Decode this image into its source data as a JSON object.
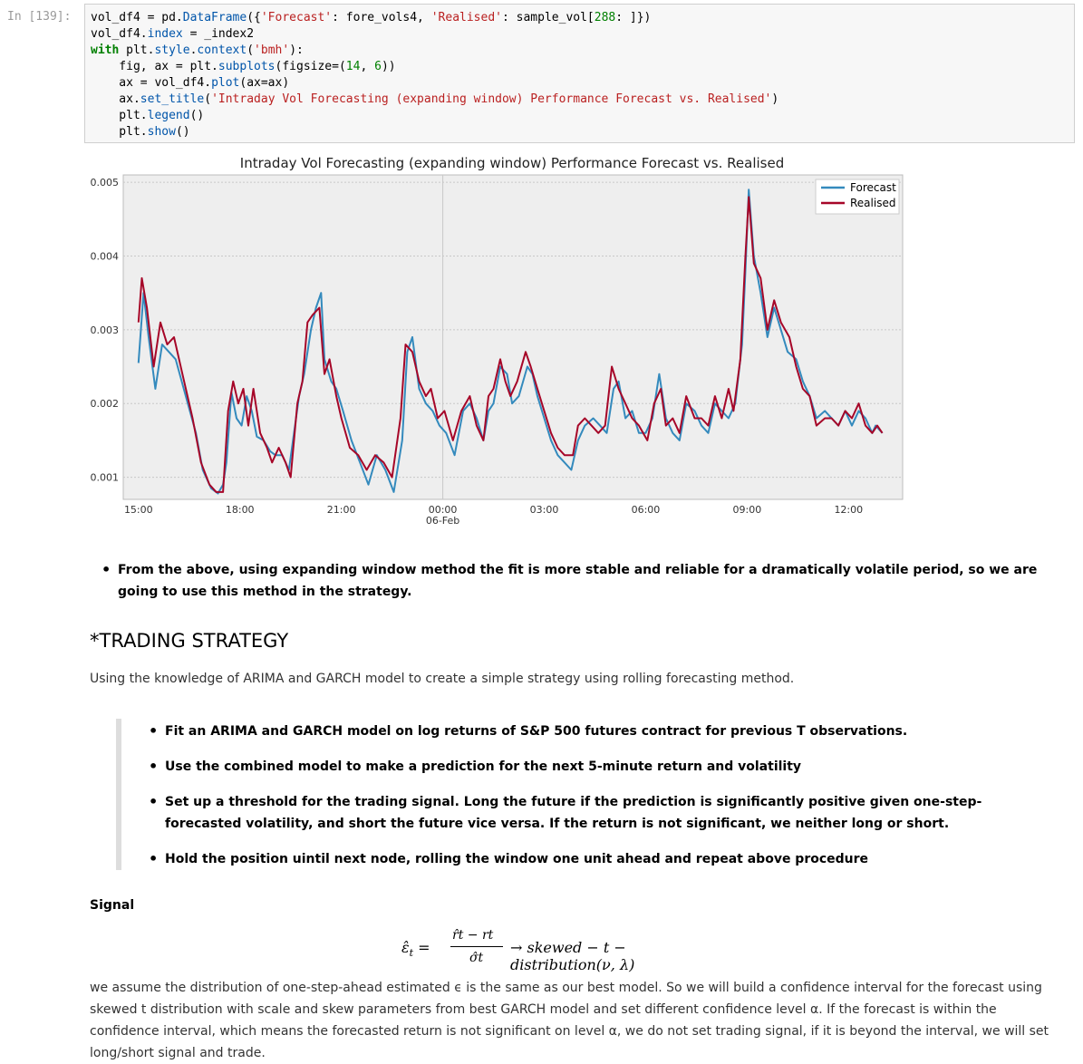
{
  "cell": {
    "prompt": "In [139]:",
    "code_lines": [
      [
        {
          "t": "vol_df4 = pd."
        },
        {
          "t": "DataFrame",
          "c": "attr"
        },
        {
          "t": "({"
        },
        {
          "t": "'Forecast'",
          "c": "str"
        },
        {
          "t": ": fore_vols4, "
        },
        {
          "t": "'Realised'",
          "c": "str"
        },
        {
          "t": ": sample_vol["
        },
        {
          "t": "288",
          "c": "num"
        },
        {
          "t": ": ]})"
        }
      ],
      [
        {
          "t": "vol_df4."
        },
        {
          "t": "index",
          "c": "attr"
        },
        {
          "t": " = _index2"
        }
      ],
      [
        {
          "t": "with",
          "c": "kw"
        },
        {
          "t": " plt."
        },
        {
          "t": "style",
          "c": "attr"
        },
        {
          "t": "."
        },
        {
          "t": "context",
          "c": "attr"
        },
        {
          "t": "("
        },
        {
          "t": "'bmh'",
          "c": "str"
        },
        {
          "t": "):"
        }
      ],
      [
        {
          "t": "    fig, ax = plt."
        },
        {
          "t": "subplots",
          "c": "attr"
        },
        {
          "t": "(figsize=("
        },
        {
          "t": "14",
          "c": "num"
        },
        {
          "t": ", "
        },
        {
          "t": "6",
          "c": "num"
        },
        {
          "t": "))"
        }
      ],
      [
        {
          "t": "    ax = vol_df4."
        },
        {
          "t": "plot",
          "c": "attr"
        },
        {
          "t": "(ax=ax)"
        }
      ],
      [
        {
          "t": "    ax."
        },
        {
          "t": "set_title",
          "c": "attr"
        },
        {
          "t": "("
        },
        {
          "t": "'Intraday Vol Forecasting (expanding window) Performance Forecast vs. Realised'",
          "c": "str"
        },
        {
          "t": ")"
        }
      ],
      [
        {
          "t": "    plt."
        },
        {
          "t": "legend",
          "c": "attr"
        },
        {
          "t": "()"
        }
      ],
      [
        {
          "t": "    plt."
        },
        {
          "t": "show",
          "c": "attr"
        },
        {
          "t": "()"
        }
      ]
    ]
  },
  "chart_data": {
    "type": "line",
    "title": "Intraday Vol Forecasting (expanding window) Performance Forecast vs. Realised",
    "ylim": [
      0.0007,
      0.0051
    ],
    "yticks": [
      "0.001",
      "0.002",
      "0.003",
      "0.004",
      "0.005"
    ],
    "ytick_values": [
      0.001,
      0.002,
      0.003,
      0.004,
      0.005
    ],
    "xlim_hours": [
      14.55,
      22.3
    ],
    "xticks": [
      {
        "label": "15:00",
        "x": 15
      },
      {
        "label": "18:00",
        "x": 18
      },
      {
        "label": "21:00",
        "x": 21
      },
      {
        "label": "00:00",
        "sub": "06-Feb",
        "x": 24
      },
      {
        "label": "03:00",
        "x": 27
      },
      {
        "label": "06:00",
        "x": 30
      },
      {
        "label": "09:00",
        "x": 33
      },
      {
        "label": "12:00",
        "x": 36
      }
    ],
    "grid": true,
    "legend_position": "top-right",
    "series": [
      {
        "name": "Forecast",
        "color": "#348abd",
        "points": [
          [
            15.0,
            0.00255
          ],
          [
            15.15,
            0.0035
          ],
          [
            15.3,
            0.0029
          ],
          [
            15.5,
            0.0022
          ],
          [
            15.7,
            0.0028
          ],
          [
            15.9,
            0.0027
          ],
          [
            16.1,
            0.0026
          ],
          [
            16.4,
            0.0021
          ],
          [
            16.7,
            0.0016
          ],
          [
            16.9,
            0.0011
          ],
          [
            17.15,
            0.00085
          ],
          [
            17.35,
            0.00078
          ],
          [
            17.5,
            0.0009
          ],
          [
            17.6,
            0.0012
          ],
          [
            17.75,
            0.00215
          ],
          [
            17.9,
            0.0018
          ],
          [
            18.05,
            0.0017
          ],
          [
            18.2,
            0.0021
          ],
          [
            18.35,
            0.0019
          ],
          [
            18.5,
            0.00155
          ],
          [
            18.7,
            0.0015
          ],
          [
            18.9,
            0.00135
          ],
          [
            19.05,
            0.0013
          ],
          [
            19.25,
            0.0013
          ],
          [
            19.45,
            0.0011
          ],
          [
            19.6,
            0.0016
          ],
          [
            19.75,
            0.0021
          ],
          [
            19.9,
            0.0024
          ],
          [
            20.1,
            0.003
          ],
          [
            20.25,
            0.0033
          ],
          [
            20.4,
            0.0035
          ],
          [
            20.5,
            0.0026
          ],
          [
            20.7,
            0.0023
          ],
          [
            20.85,
            0.0022
          ],
          [
            21.05,
            0.0019
          ],
          [
            21.3,
            0.0015
          ],
          [
            21.55,
            0.0012
          ],
          [
            21.8,
            0.0009
          ],
          [
            22.05,
            0.0013
          ],
          [
            22.3,
            0.0011
          ],
          [
            22.55,
            0.0008
          ],
          [
            22.8,
            0.0015
          ],
          [
            22.95,
            0.0027
          ],
          [
            23.1,
            0.0029
          ],
          [
            23.3,
            0.0022
          ],
          [
            23.5,
            0.002
          ],
          [
            23.7,
            0.0019
          ],
          [
            23.9,
            0.0017
          ],
          [
            24.1,
            0.0016
          ],
          [
            24.35,
            0.0013
          ],
          [
            24.6,
            0.0019
          ],
          [
            24.8,
            0.002
          ],
          [
            25.0,
            0.0018
          ],
          [
            25.2,
            0.0015
          ],
          [
            25.35,
            0.0019
          ],
          [
            25.5,
            0.002
          ],
          [
            25.7,
            0.0025
          ],
          [
            25.9,
            0.0024
          ],
          [
            26.05,
            0.002
          ],
          [
            26.25,
            0.0021
          ],
          [
            26.5,
            0.0025
          ],
          [
            26.65,
            0.0024
          ],
          [
            26.8,
            0.0021
          ],
          [
            27.0,
            0.0018
          ],
          [
            27.2,
            0.0015
          ],
          [
            27.4,
            0.0013
          ],
          [
            27.6,
            0.0012
          ],
          [
            27.8,
            0.0011
          ],
          [
            28.0,
            0.0015
          ],
          [
            28.2,
            0.0017
          ],
          [
            28.45,
            0.0018
          ],
          [
            28.65,
            0.0017
          ],
          [
            28.85,
            0.0016
          ],
          [
            29.05,
            0.0022
          ],
          [
            29.2,
            0.0023
          ],
          [
            29.4,
            0.0018
          ],
          [
            29.6,
            0.0019
          ],
          [
            29.8,
            0.0016
          ],
          [
            30.0,
            0.0016
          ],
          [
            30.2,
            0.0018
          ],
          [
            30.4,
            0.0024
          ],
          [
            30.6,
            0.0018
          ],
          [
            30.8,
            0.0016
          ],
          [
            31.0,
            0.0015
          ],
          [
            31.2,
            0.002
          ],
          [
            31.45,
            0.0019
          ],
          [
            31.65,
            0.0017
          ],
          [
            31.85,
            0.0016
          ],
          [
            32.05,
            0.002
          ],
          [
            32.25,
            0.0019
          ],
          [
            32.45,
            0.0018
          ],
          [
            32.65,
            0.002
          ],
          [
            32.85,
            0.0028
          ],
          [
            32.95,
            0.0038
          ],
          [
            33.05,
            0.0049
          ],
          [
            33.2,
            0.004
          ],
          [
            33.4,
            0.0035
          ],
          [
            33.6,
            0.0029
          ],
          [
            33.8,
            0.0033
          ],
          [
            34.0,
            0.003
          ],
          [
            34.2,
            0.0027
          ],
          [
            34.45,
            0.0026
          ],
          [
            34.65,
            0.0023
          ],
          [
            34.85,
            0.0021
          ],
          [
            35.05,
            0.0018
          ],
          [
            35.3,
            0.0019
          ],
          [
            35.5,
            0.0018
          ],
          [
            35.7,
            0.0017
          ],
          [
            35.9,
            0.0019
          ],
          [
            36.1,
            0.0017
          ],
          [
            36.3,
            0.0019
          ],
          [
            36.5,
            0.0018
          ],
          [
            36.7,
            0.0016
          ],
          [
            36.8,
            0.0017
          ],
          [
            37.0,
            0.0016
          ]
        ]
      },
      {
        "name": "Realised",
        "color": "#a60628",
        "points": [
          [
            15.0,
            0.0031
          ],
          [
            15.1,
            0.0037
          ],
          [
            15.25,
            0.0033
          ],
          [
            15.45,
            0.0025
          ],
          [
            15.65,
            0.0031
          ],
          [
            15.85,
            0.0028
          ],
          [
            16.05,
            0.0029
          ],
          [
            16.3,
            0.0024
          ],
          [
            16.6,
            0.0018
          ],
          [
            16.85,
            0.0012
          ],
          [
            17.1,
            0.0009
          ],
          [
            17.3,
            0.0008
          ],
          [
            17.5,
            0.0008
          ],
          [
            17.65,
            0.0019
          ],
          [
            17.8,
            0.0023
          ],
          [
            17.95,
            0.002
          ],
          [
            18.1,
            0.0022
          ],
          [
            18.25,
            0.0017
          ],
          [
            18.4,
            0.0022
          ],
          [
            18.6,
            0.0016
          ],
          [
            18.8,
            0.0014
          ],
          [
            18.95,
            0.0012
          ],
          [
            19.15,
            0.0014
          ],
          [
            19.35,
            0.0012
          ],
          [
            19.5,
            0.001
          ],
          [
            19.7,
            0.002
          ],
          [
            19.85,
            0.0023
          ],
          [
            20.0,
            0.0031
          ],
          [
            20.15,
            0.0032
          ],
          [
            20.35,
            0.0033
          ],
          [
            20.5,
            0.0024
          ],
          [
            20.65,
            0.0026
          ],
          [
            20.85,
            0.0021
          ],
          [
            21.0,
            0.0018
          ],
          [
            21.25,
            0.0014
          ],
          [
            21.5,
            0.0013
          ],
          [
            21.75,
            0.0011
          ],
          [
            22.0,
            0.0013
          ],
          [
            22.25,
            0.0012
          ],
          [
            22.5,
            0.001
          ],
          [
            22.75,
            0.0018
          ],
          [
            22.9,
            0.0028
          ],
          [
            23.1,
            0.0027
          ],
          [
            23.3,
            0.0023
          ],
          [
            23.5,
            0.0021
          ],
          [
            23.65,
            0.0022
          ],
          [
            23.85,
            0.0018
          ],
          [
            24.05,
            0.0019
          ],
          [
            24.3,
            0.0015
          ],
          [
            24.55,
            0.0019
          ],
          [
            24.8,
            0.0021
          ],
          [
            25.0,
            0.0017
          ],
          [
            25.2,
            0.0015
          ],
          [
            25.35,
            0.0021
          ],
          [
            25.5,
            0.0022
          ],
          [
            25.7,
            0.0026
          ],
          [
            25.85,
            0.0023
          ],
          [
            26.0,
            0.0021
          ],
          [
            26.2,
            0.0023
          ],
          [
            26.45,
            0.0027
          ],
          [
            26.6,
            0.0025
          ],
          [
            26.8,
            0.0022
          ],
          [
            27.0,
            0.0019
          ],
          [
            27.2,
            0.0016
          ],
          [
            27.4,
            0.0014
          ],
          [
            27.6,
            0.0013
          ],
          [
            27.85,
            0.0013
          ],
          [
            28.0,
            0.0017
          ],
          [
            28.2,
            0.0018
          ],
          [
            28.4,
            0.0017
          ],
          [
            28.6,
            0.0016
          ],
          [
            28.8,
            0.0017
          ],
          [
            29.0,
            0.0025
          ],
          [
            29.2,
            0.0022
          ],
          [
            29.4,
            0.002
          ],
          [
            29.6,
            0.0018
          ],
          [
            29.8,
            0.0017
          ],
          [
            30.05,
            0.0015
          ],
          [
            30.25,
            0.002
          ],
          [
            30.45,
            0.0022
          ],
          [
            30.6,
            0.0017
          ],
          [
            30.8,
            0.0018
          ],
          [
            31.0,
            0.0016
          ],
          [
            31.2,
            0.0021
          ],
          [
            31.45,
            0.0018
          ],
          [
            31.65,
            0.0018
          ],
          [
            31.85,
            0.0017
          ],
          [
            32.05,
            0.0021
          ],
          [
            32.25,
            0.0018
          ],
          [
            32.45,
            0.0022
          ],
          [
            32.6,
            0.0019
          ],
          [
            32.8,
            0.0026
          ],
          [
            32.95,
            0.004
          ],
          [
            33.05,
            0.0048
          ],
          [
            33.2,
            0.0039
          ],
          [
            33.4,
            0.0037
          ],
          [
            33.6,
            0.003
          ],
          [
            33.8,
            0.0034
          ],
          [
            34.0,
            0.0031
          ],
          [
            34.25,
            0.0029
          ],
          [
            34.45,
            0.0025
          ],
          [
            34.65,
            0.0022
          ],
          [
            34.85,
            0.0021
          ],
          [
            35.05,
            0.0017
          ],
          [
            35.3,
            0.0018
          ],
          [
            35.5,
            0.0018
          ],
          [
            35.7,
            0.0017
          ],
          [
            35.9,
            0.0019
          ],
          [
            36.1,
            0.0018
          ],
          [
            36.3,
            0.002
          ],
          [
            36.5,
            0.0017
          ],
          [
            36.7,
            0.0016
          ],
          [
            36.85,
            0.0017
          ],
          [
            37.0,
            0.0016
          ]
        ]
      }
    ]
  },
  "notes": {
    "bullet1": "From the above, using expanding window method the fit is more stable and reliable for a dramatically volatile period, so we are going to use this method in the strategy.",
    "heading": "*TRADING STRATEGY",
    "intro": "Using the knowledge of ARIMA and GARCH model to create a simple strategy using rolling forecasting method.",
    "steps": [
      "Fit an ARIMA and GARCH model on log returns of S&P 500 futures contract for previous T observations.",
      "Use the combined model to make a prediction for the next 5-minute return and volatility",
      "Set up a threshold for the trading signal. Long the future if the prediction is significantly positive given one-step-forecasted volatility, and short the future vice versa. If the return is not significant, we neither long or short.",
      "Hold the position uintil next node, rolling the window one unit ahead and repeat above procedure"
    ],
    "signal_label": "Signal",
    "formula_lhs": "ε̂",
    "formula_sub": "t",
    "formula_num": "r̂t − rt",
    "formula_den": "σ̂t",
    "formula_rhs": "→ skewed − t − distribution(ν, λ)",
    "explanation": "we assume the distribution of one-step-ahead estimated ϵ is the same as our best model. So we will build a confidence interval for the forecast using skewed t distribution with scale and skew parameters from best GARCH model and set different confidence level α. If the forecast is within the confidence interval, which means the forecasted return is not significant on level α, we do not set trading signal, if it is beyond the interval, we will set long/short signal and trade."
  }
}
